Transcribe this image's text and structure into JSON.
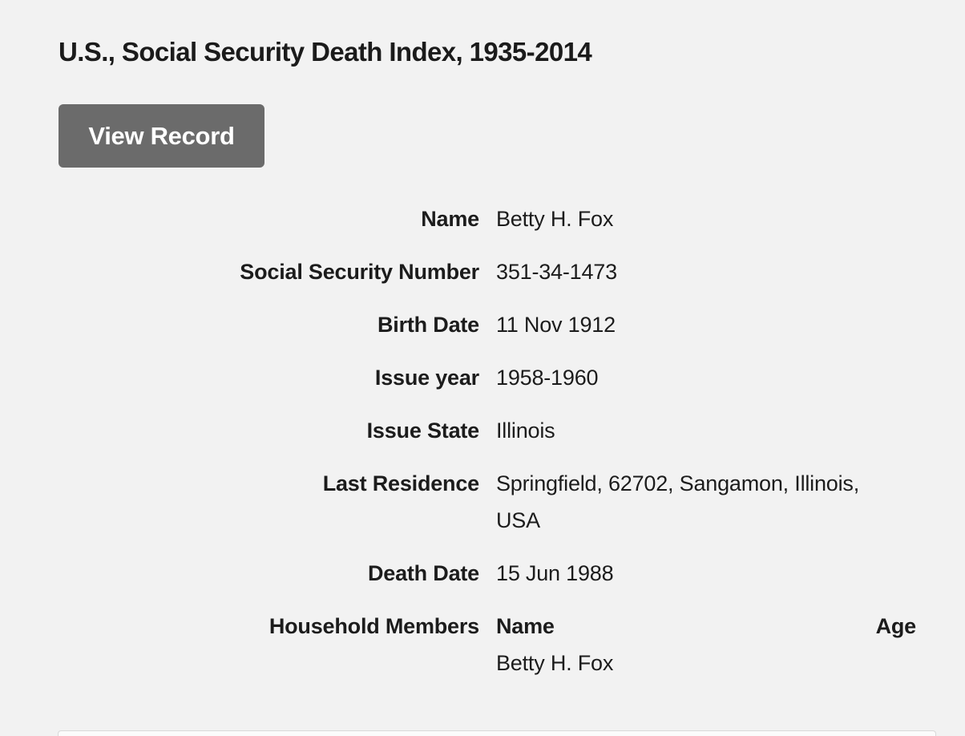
{
  "page": {
    "title": "U.S., Social Security Death Index, 1935-2014",
    "view_record_button": "View Record"
  },
  "record": {
    "fields": [
      {
        "label": "Name",
        "value": "Betty H. Fox"
      },
      {
        "label": "Social Security Number",
        "value": "351-34-1473"
      },
      {
        "label": "Birth Date",
        "value": "11 Nov 1912"
      },
      {
        "label": "Issue year",
        "value": "1958-1960"
      },
      {
        "label": "Issue State",
        "value": "Illinois"
      },
      {
        "label": "Last Residence",
        "value": "Springfield, 62702, Sangamon, Illinois, USA"
      },
      {
        "label": "Death Date",
        "value": "15 Jun 1988"
      }
    ],
    "household_members": {
      "label": "Household Members",
      "columns": [
        "Name",
        "Age"
      ],
      "rows": [
        {
          "name": "Betty H. Fox",
          "age": ""
        }
      ]
    }
  },
  "colors": {
    "background": "#f2f2f2",
    "text": "#1c1c1c",
    "button_background": "#6b6b6b",
    "button_text": "#ffffff",
    "next_card_border": "#d9d9d9",
    "next_card_fill": "#fbfbfb"
  }
}
